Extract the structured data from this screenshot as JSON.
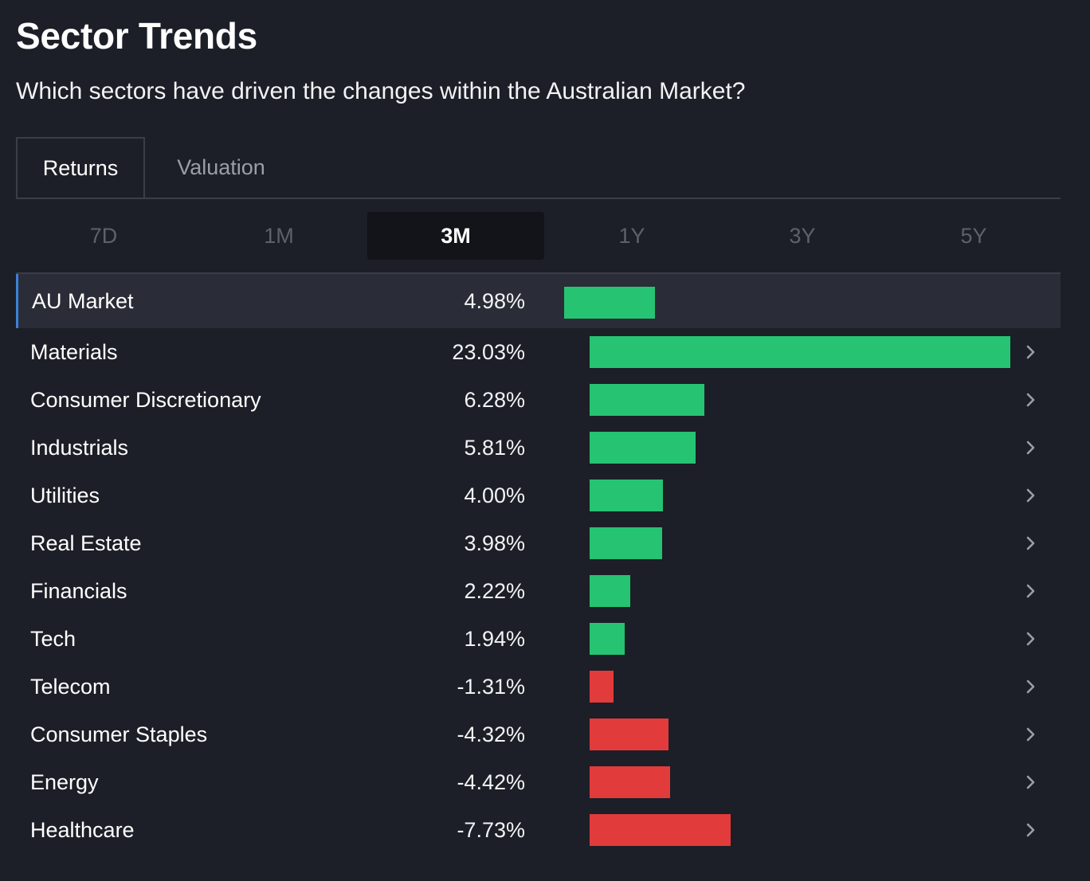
{
  "header": {
    "title": "Sector Trends",
    "subtitle": "Which sectors have driven the changes within the Australian Market?"
  },
  "tabs": [
    {
      "label": "Returns",
      "active": true
    },
    {
      "label": "Valuation",
      "active": false
    }
  ],
  "periods": [
    {
      "label": "7D",
      "active": false
    },
    {
      "label": "1M",
      "active": false
    },
    {
      "label": "3M",
      "active": true
    },
    {
      "label": "1Y",
      "active": false
    },
    {
      "label": "3Y",
      "active": false
    },
    {
      "label": "5Y",
      "active": false
    }
  ],
  "colors": {
    "positive": "#26c373",
    "negative": "#e23b3b",
    "highlight_accent": "#3b82d6"
  },
  "chart_data": {
    "type": "bar",
    "orientation": "horizontal",
    "categories": [
      "AU Market",
      "Materials",
      "Consumer Discretionary",
      "Industrials",
      "Utilities",
      "Real Estate",
      "Financials",
      "Tech",
      "Telecom",
      "Consumer Staples",
      "Energy",
      "Healthcare"
    ],
    "values": [
      4.98,
      23.03,
      6.28,
      5.81,
      4.0,
      3.98,
      2.22,
      1.94,
      -1.31,
      -4.32,
      -4.42,
      -7.73
    ],
    "labels": [
      "4.98%",
      "23.03%",
      "6.28%",
      "5.81%",
      "4.00%",
      "3.98%",
      "2.22%",
      "1.94%",
      "-1.31%",
      "-4.32%",
      "-4.42%",
      "-7.73%"
    ],
    "highlighted": "AU Market"
  }
}
